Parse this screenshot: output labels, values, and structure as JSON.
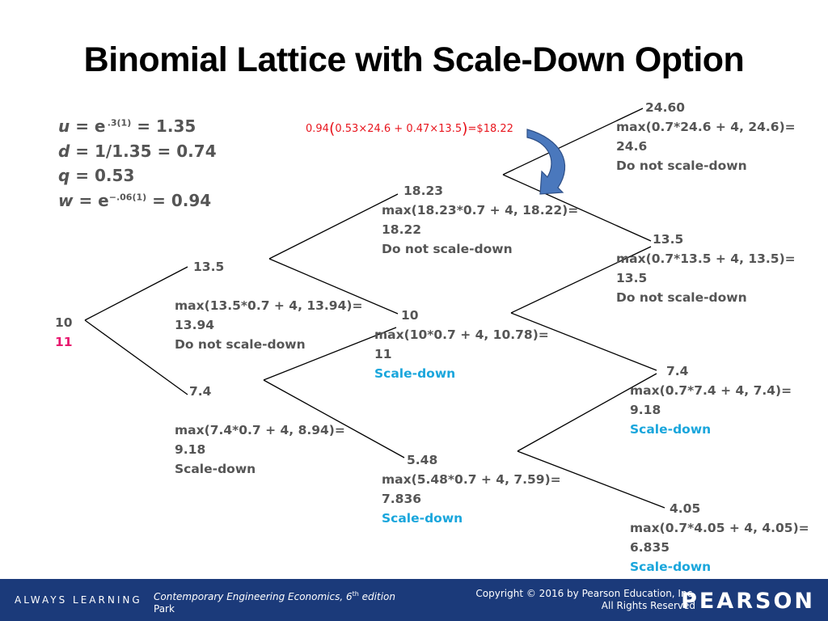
{
  "title": "Binomial Lattice with Scale-Down Option",
  "params": {
    "u": {
      "label": "u",
      "eq1": " = e",
      "sup": " .3(1)",
      "eq2": " = 1.35"
    },
    "d": {
      "label": "d",
      "eq": " = 1/1.35 = 0.74"
    },
    "q": {
      "label": "q",
      "eq": " = 0.53"
    },
    "w": {
      "label": "w",
      "eq1": " = e",
      "sup": "−.06(1)",
      "eq2": " = 0.94"
    }
  },
  "formula": {
    "w": "0.94",
    "open": "(",
    "body": "0.53×24.6 + 0.47×13.5",
    "close": ")",
    "result": "=$18.22"
  },
  "nodes": {
    "n0": {
      "value": "10",
      "option": "11"
    },
    "n1u": {
      "value": "13.5",
      "formula": "max(13.5*0.7 + 4, 13.94)=",
      "result": "13.94",
      "decision": "Do not scale-down"
    },
    "n1d": {
      "value": "7.4",
      "formula": "max(7.4*0.7 + 4, 8.94)=",
      "result": "9.18",
      "decision": "Scale-down"
    },
    "n2uu": {
      "value": "18.23",
      "formula": "max(18.23*0.7 + 4, 18.22)=",
      "result": "18.22",
      "decision": "Do not scale-down"
    },
    "n2ud": {
      "value": "10",
      "formula": "max(10*0.7 + 4, 10.78)=",
      "result": "11",
      "decision": "Scale-down"
    },
    "n2dd": {
      "value": "5.48",
      "formula": "max(5.48*0.7 + 4, 7.59)=",
      "result": "7.836",
      "decision": "Scale-down"
    },
    "n3a": {
      "value": "24.60",
      "formula": "max(0.7*24.6 + 4, 24.6)=",
      "result": "24.6",
      "decision": "Do not scale-down"
    },
    "n3b": {
      "value": "13.5",
      "formula": "max(0.7*13.5 + 4, 13.5)=",
      "result": "13.5",
      "decision": "Do not scale-down"
    },
    "n3c": {
      "value": "7.4",
      "formula": "max(0.7*7.4 + 4, 7.4)=",
      "result": "9.18",
      "decision": "Scale-down"
    },
    "n3d": {
      "value": "4.05",
      "formula": "max(0.7*4.05 + 4, 4.05)=",
      "result": "6.835",
      "decision": "Scale-down"
    }
  },
  "colors": {
    "scale_down": "#1aa6dc",
    "option_value": "#e8166e",
    "formula": "#e8161e",
    "footer": "#1b3a7a",
    "arrow": "#4a78bd"
  },
  "footer": {
    "always_learning": "ALWAYS LEARNING",
    "book_title": "Contemporary Engineering Economics, 6",
    "book_sup": "th",
    "book_edition": " edition",
    "author": "Park",
    "copyright": "Copyright © 2016 by Pearson Education, Inc.",
    "rights": "All Rights Reserved",
    "brand": "PEARSON"
  }
}
